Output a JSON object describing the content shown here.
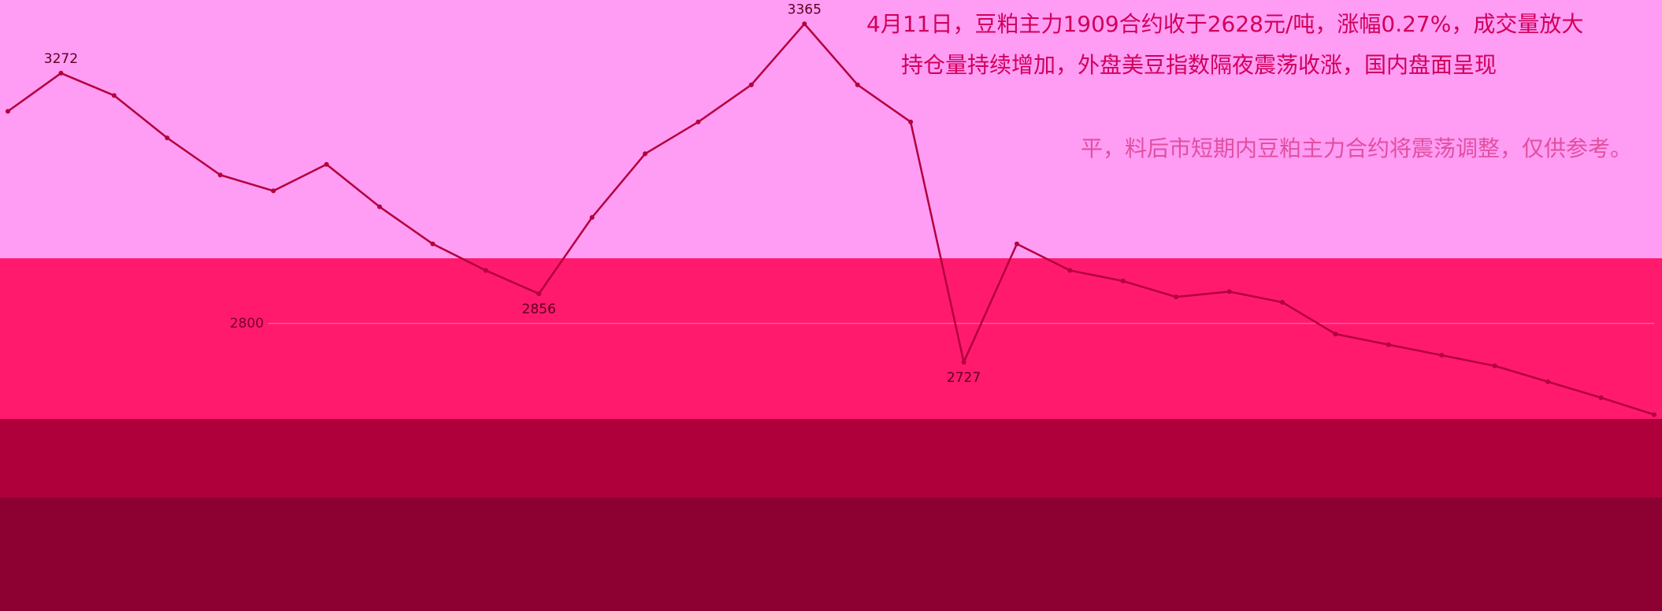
{
  "chart_data": {
    "type": "line",
    "categories": [
      null,
      null,
      null,
      null,
      null,
      null,
      null,
      null,
      null,
      null,
      null,
      null,
      null,
      null,
      null,
      null,
      null,
      null,
      null,
      null,
      null,
      null,
      null,
      null,
      null,
      null,
      null,
      null,
      null,
      null,
      null,
      null
    ],
    "series": [
      {
        "color": "#b3003c",
        "values": [
          3200,
          3272,
          3230,
          3150,
          3080,
          3050,
          3100,
          3020,
          2950,
          2900,
          2856,
          3000,
          3120,
          3180,
          3250,
          3365,
          3250,
          3180,
          2727,
          2950,
          2900,
          2880,
          2850,
          2860,
          2840,
          2780,
          2760,
          2740,
          2720,
          2690,
          2660,
          2628
        ]
      }
    ],
    "annotations": [
      3272,
      3365,
      2856,
      2727
    ],
    "ylim": [
      2620,
      3410
    ],
    "yticks": [
      2800
    ],
    "grid": true,
    "commentary": [
      "4月11日，豆粕主力1909合约收于2628元/吨，涨幅0.27%，成交量放大",
      "持仓量持续增加，外盘美豆指数隔夜震荡收涨，国内盘面呈现",
      "平，料后市短期内豆粕主力合约将震荡调整，仅供参考。"
    ]
  }
}
